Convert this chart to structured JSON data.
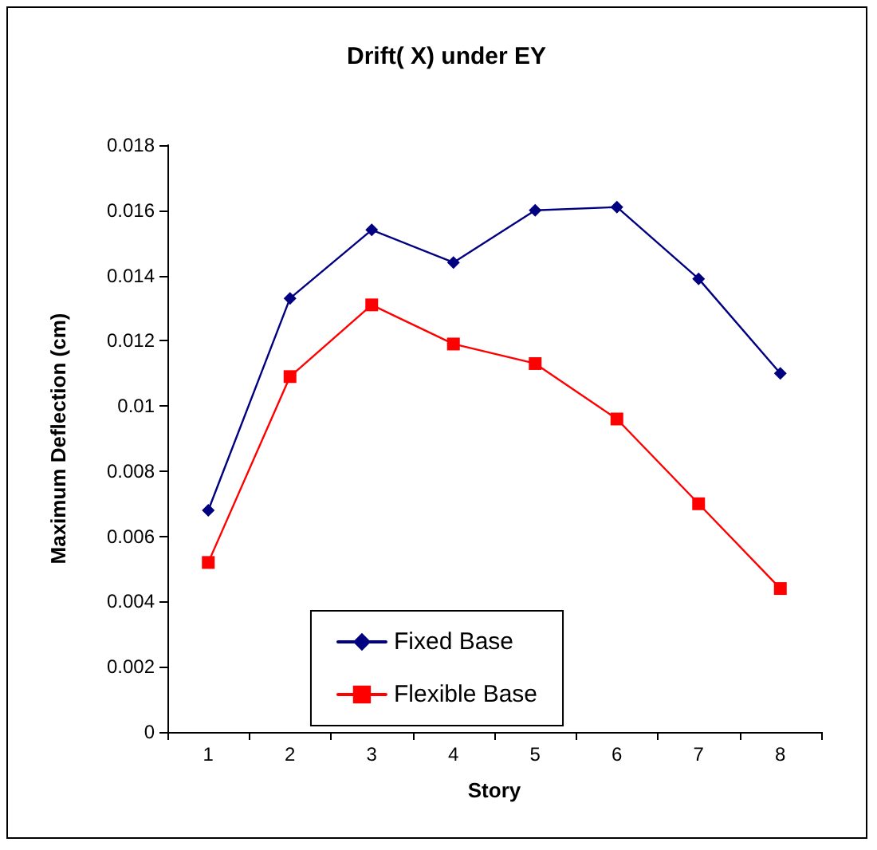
{
  "chart_data": {
    "type": "line",
    "title": "Drift( X) under EY",
    "xlabel": "Story",
    "ylabel": "Maximum Deflection (cm)",
    "categories": [
      "1",
      "2",
      "3",
      "4",
      "5",
      "6",
      "7",
      "8"
    ],
    "series": [
      {
        "name": "Fixed Base",
        "color": "#000080",
        "marker": "diamond",
        "values": [
          0.0068,
          0.0133,
          0.0154,
          0.0144,
          0.016,
          0.0161,
          0.0139,
          0.011
        ]
      },
      {
        "name": "Flexible Base",
        "color": "#ff0000",
        "marker": "square",
        "values": [
          0.0052,
          0.0109,
          0.0131,
          0.0119,
          0.0113,
          0.0096,
          0.007,
          0.0044
        ]
      }
    ],
    "ylim": [
      0,
      0.018
    ],
    "yticks": [
      0,
      0.002,
      0.004,
      0.006,
      0.008,
      0.01,
      0.012,
      0.014,
      0.016,
      0.018
    ],
    "grid": false,
    "legend": "bottom",
    "line_style": "solid"
  }
}
